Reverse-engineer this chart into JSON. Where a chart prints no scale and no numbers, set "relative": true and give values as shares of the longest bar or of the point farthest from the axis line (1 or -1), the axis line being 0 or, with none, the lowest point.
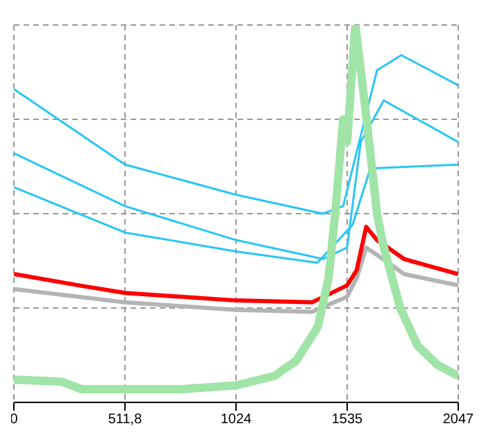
{
  "chart_data": {
    "type": "line",
    "relative": true,
    "xlim": [
      0,
      2047
    ],
    "xticks": [
      0,
      {
        "value": 511.75,
        "label": "511,8"
      },
      {
        "value": 1023.5,
        "label": "1024"
      },
      {
        "value": 1535.25,
        "label": "1535"
      },
      2047
    ],
    "grid": true,
    "legend": false,
    "marker": "none",
    "series": [
      {
        "color": "#b4b4b4",
        "x": [
          0,
          512,
          1024,
          1373,
          1535,
          1580,
          1623,
          1700,
          1797,
          2047
        ],
        "values": [
          0.3,
          0.265,
          0.245,
          0.24,
          0.28,
          0.33,
          0.41,
          0.38,
          0.34,
          0.31
        ]
      },
      {
        "color": "#ff0000",
        "x": [
          0,
          300,
          512,
          1024,
          1373,
          1535,
          1579,
          1623,
          1673,
          1797,
          2047
        ],
        "values": [
          0.34,
          0.31,
          0.29,
          0.27,
          0.265,
          0.31,
          0.35,
          0.465,
          0.43,
          0.38,
          0.34
        ]
      },
      {
        "color": "#29c5f6",
        "x": [
          0,
          512,
          1024,
          1423,
          1517,
          1673,
          1785,
          2047
        ],
        "values": [
          0.83,
          0.63,
          0.55,
          0.5,
          0.52,
          0.88,
          0.92,
          0.84
        ]
      },
      {
        "color": "#29c5f6",
        "x": [
          0,
          512,
          1024,
          1423,
          1535,
          1598,
          1704,
          2047
        ],
        "values": [
          0.66,
          0.52,
          0.43,
          0.38,
          0.41,
          0.69,
          0.8,
          0.69
        ]
      },
      {
        "color": "#29c5f6",
        "x": [
          0,
          512,
          1024,
          1398,
          1560,
          1642,
          2047
        ],
        "values": [
          0.57,
          0.45,
          0.4,
          0.37,
          0.47,
          0.62,
          0.63
        ]
      },
      {
        "color": "#a0e4a8",
        "x": [
          0,
          220,
          310,
          512,
          768,
          1024,
          1200,
          1300,
          1400,
          1450,
          1480,
          1517,
          1535,
          1573,
          1623,
          1673,
          1700,
          1780,
          1860,
          1950,
          2047
        ],
        "values": [
          0.06,
          0.055,
          0.035,
          0.035,
          0.035,
          0.045,
          0.07,
          0.11,
          0.2,
          0.33,
          0.5,
          0.75,
          0.69,
          1.0,
          0.76,
          0.5,
          0.42,
          0.25,
          0.15,
          0.1,
          0.07
        ]
      }
    ]
  }
}
